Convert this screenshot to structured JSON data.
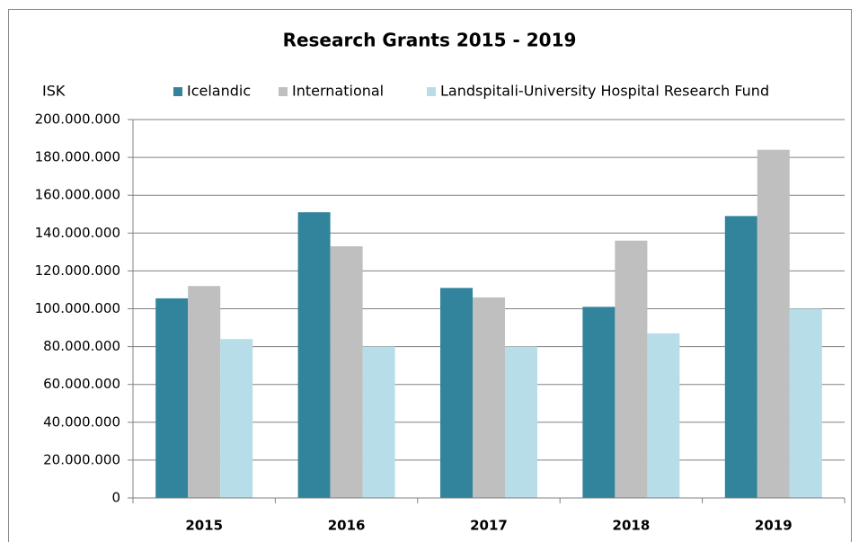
{
  "chart_data": {
    "type": "bar",
    "title": "Research Grants 2015 - 2019",
    "y_label": "ISK",
    "categories": [
      "2015",
      "2016",
      "2017",
      "2018",
      "2019"
    ],
    "series": [
      {
        "name": "Icelandic",
        "color": "#31849b",
        "values": [
          105500000,
          151000000,
          111000000,
          101000000,
          149000000
        ]
      },
      {
        "name": "International",
        "color": "#bfbfbf",
        "values": [
          112000000,
          133000000,
          106000000,
          136000000,
          184000000
        ]
      },
      {
        "name": "Landspitali-University Hospital Research Fund",
        "color": "#b7dee8",
        "values": [
          84000000,
          80000000,
          80000000,
          87000000,
          100000000
        ]
      }
    ],
    "ylim": [
      0,
      200000000
    ],
    "yticks": [
      0,
      {
        "value": 20000000,
        "label": "20.000.000"
      },
      {
        "value": 40000000,
        "label": "40.000.000"
      },
      {
        "value": 60000000,
        "label": "60.000.000"
      },
      {
        "value": 80000000,
        "label": "80.000.000"
      },
      {
        "value": 100000000,
        "label": "100.000.000"
      },
      {
        "value": 120000000,
        "label": "120.000.000"
      },
      {
        "value": 140000000,
        "label": "140.000.000"
      },
      {
        "value": 160000000,
        "label": "160.000.000"
      },
      {
        "value": 180000000,
        "label": "180.000.000"
      },
      {
        "value": 200000000,
        "label": "200.000.000"
      }
    ],
    "grid": true,
    "legend": "top"
  }
}
